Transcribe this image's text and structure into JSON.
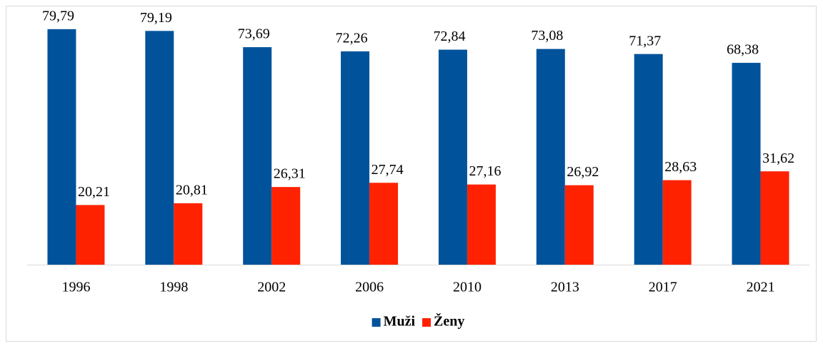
{
  "chart_data": {
    "type": "bar",
    "categories": [
      "1996",
      "1998",
      "2002",
      "2006",
      "2010",
      "2013",
      "2017",
      "2021"
    ],
    "series": [
      {
        "name": "Muži",
        "color": "#00539b",
        "values": [
          79.79,
          79.19,
          73.69,
          72.26,
          72.84,
          73.08,
          71.37,
          68.38
        ],
        "value_labels": [
          "79,79",
          "79,19",
          "73,69",
          "72,26",
          "72,84",
          "73,08",
          "71,37",
          "68,38"
        ]
      },
      {
        "name": "Ženy",
        "color": "#ff2200",
        "values": [
          20.21,
          20.81,
          26.31,
          27.74,
          27.16,
          26.92,
          28.63,
          31.62
        ],
        "value_labels": [
          "20,21",
          "20,81",
          "26,31",
          "27,74",
          "27,16",
          "26,92",
          "28,63",
          "31,62"
        ]
      }
    ],
    "ylim": [
      0,
      80
    ],
    "legend": "bottom"
  }
}
